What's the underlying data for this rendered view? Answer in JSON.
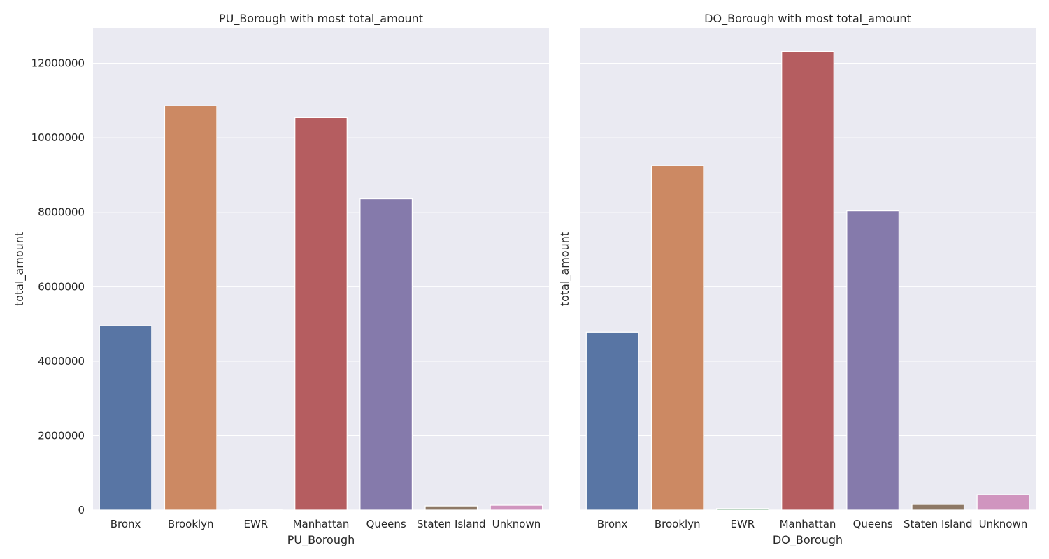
{
  "chart_data": [
    {
      "type": "bar",
      "title": "PU_Borough with most total_amount",
      "xlabel": "PU_Borough",
      "ylabel": "total_amount",
      "categories": [
        "Bronx",
        "Brooklyn",
        "EWR",
        "Manhattan",
        "Queens",
        "Staten Island",
        "Unknown"
      ],
      "values": [
        4950000,
        10860000,
        8000,
        10540000,
        8360000,
        110000,
        130000
      ],
      "ylim": [
        0,
        12950000
      ],
      "yticks": [
        0,
        2000000,
        4000000,
        6000000,
        8000000,
        10000000,
        12000000
      ],
      "ytick_labels": [
        "0",
        "2000000",
        "4000000",
        "6000000",
        "8000000",
        "10000000",
        "12000000"
      ],
      "grid": true
    },
    {
      "type": "bar",
      "title": "DO_Borough with most total_amount",
      "xlabel": "DO_Borough",
      "ylabel": "total_amount",
      "categories": [
        "Bronx",
        "Brooklyn",
        "EWR",
        "Manhattan",
        "Queens",
        "Staten Island",
        "Unknown"
      ],
      "values": [
        4780000,
        9250000,
        40000,
        12320000,
        8040000,
        150000,
        410000
      ],
      "ylim": [
        0,
        12950000
      ],
      "yticks": [
        0,
        2000000,
        4000000,
        6000000,
        8000000,
        10000000,
        12000000
      ],
      "ytick_labels": [],
      "grid": true
    }
  ],
  "colors": [
    "#5875a4",
    "#cc8963",
    "#5f9e6e",
    "#b55d60",
    "#857aab",
    "#8d7866",
    "#d095bf"
  ]
}
